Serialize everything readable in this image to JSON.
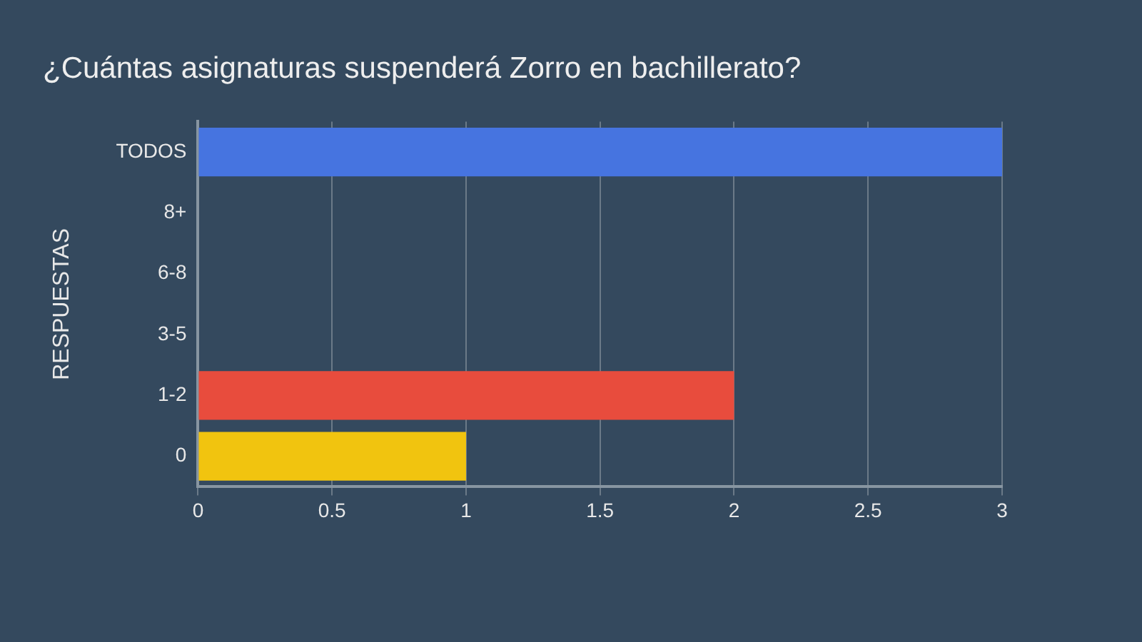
{
  "chart_data": {
    "type": "bar",
    "orientation": "horizontal",
    "title": "¿Cuántas asignaturas suspenderá Zorro en bachillerato?",
    "ylabel": "RESPUESTAS",
    "categories": [
      "TODOS",
      "8+",
      "6-8",
      "3-5",
      "1-2",
      "0"
    ],
    "values": [
      3,
      0,
      0,
      0,
      2,
      1
    ],
    "colors": [
      "#4674e0",
      "#9b59b6",
      "#1abc9c",
      "#2ecc71",
      "#e84c3d",
      "#f1c40f"
    ],
    "xlim": [
      0,
      3
    ],
    "xticks": [
      0,
      0.5,
      1,
      1.5,
      2,
      2.5,
      3
    ],
    "grid": "x",
    "legend": false
  }
}
